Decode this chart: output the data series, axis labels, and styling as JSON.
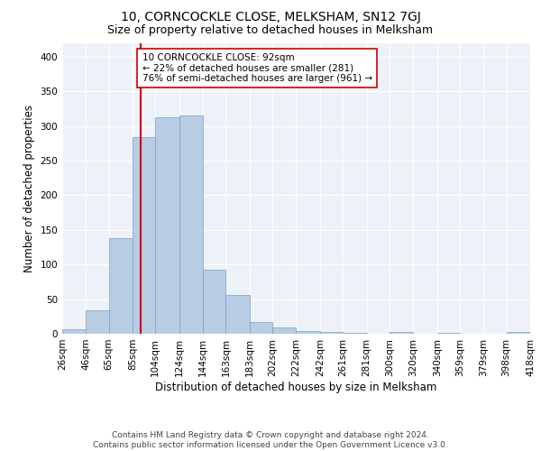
{
  "title1": "10, CORNCOCKLE CLOSE, MELKSHAM, SN12 7GJ",
  "title2": "Size of property relative to detached houses in Melksham",
  "xlabel": "Distribution of detached houses by size in Melksham",
  "ylabel": "Number of detached properties",
  "bin_edges": [
    26,
    46,
    65,
    85,
    104,
    124,
    144,
    163,
    183,
    202,
    222,
    242,
    261,
    281,
    300,
    320,
    340,
    359,
    379,
    398,
    418
  ],
  "bar_heights": [
    6,
    34,
    138,
    284,
    313,
    315,
    93,
    56,
    17,
    9,
    4,
    2,
    1,
    0,
    2,
    0,
    1,
    0,
    0,
    3
  ],
  "bar_color": "#b8cce4",
  "bar_edge_color": "#7aa0c4",
  "property_size": 92,
  "red_line_color": "#cc0000",
  "annotation_line1": "10 CORNCOCKLE CLOSE: 92sqm",
  "annotation_line2": "← 22% of detached houses are smaller (281)",
  "annotation_line3": "76% of semi-detached houses are larger (961) →",
  "annotation_box_color": "#ffffff",
  "annotation_box_edge": "#cc0000",
  "footer_text": "Contains HM Land Registry data © Crown copyright and database right 2024.\nContains public sector information licensed under the Open Government Licence v3.0.",
  "bg_color": "#eef2f8",
  "grid_color": "#ffffff",
  "ylim": [
    0,
    420
  ],
  "title1_fontsize": 10,
  "title2_fontsize": 9,
  "xlabel_fontsize": 8.5,
  "ylabel_fontsize": 8.5,
  "tick_fontsize": 7.5,
  "footer_fontsize": 6.5,
  "annot_fontsize": 7.5
}
